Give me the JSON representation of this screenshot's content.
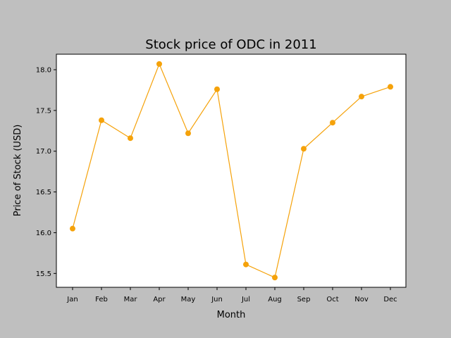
{
  "chart_data": {
    "type": "line",
    "title": "Stock price of ODC in 2011",
    "xlabel": "Month",
    "ylabel": "Price of Stock (USD)",
    "categories": [
      "Jan",
      "Feb",
      "Mar",
      "Apr",
      "May",
      "Jun",
      "Jul",
      "Aug",
      "Sep",
      "Oct",
      "Nov",
      "Dec"
    ],
    "values": [
      16.05,
      17.38,
      17.16,
      18.07,
      17.22,
      17.76,
      15.61,
      15.45,
      17.03,
      17.35,
      17.67,
      17.79
    ],
    "ylim": [
      15.33,
      18.19
    ],
    "yticks": [
      "15.5",
      "16.0",
      "16.5",
      "17.0",
      "17.5",
      "18.0"
    ],
    "grid": false,
    "legend": "none",
    "colors": {
      "line": "#f5a20a",
      "background": "#bfbfbf",
      "plot_background": "#ffffff"
    }
  }
}
